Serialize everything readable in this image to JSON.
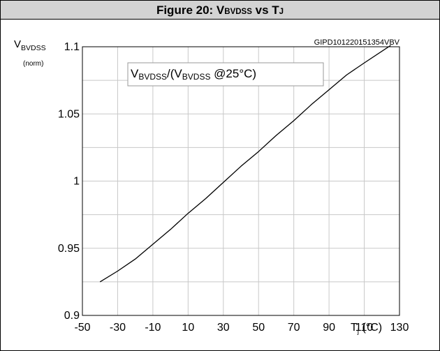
{
  "figure": {
    "title_prefix": "Figure 20: V",
    "title_v_sub": "BVDSS",
    "title_mid": " vs T",
    "title_t_sub": "J",
    "code": "GIPD101220151354VBV"
  },
  "chart_data": {
    "type": "line",
    "ylabel_main": "V",
    "ylabel_sub": "BVDSS",
    "yunit": "(norm)",
    "xlabel_main": "T",
    "xlabel_sub": "j",
    "xlabel_unit": " (°C)",
    "annotation": {
      "a1": "V",
      "s1": "BVDSS",
      "a2": "/(V",
      "s2": "BVDSS",
      "a3": " @25°C)"
    },
    "xlim": [
      -50,
      130
    ],
    "ylim": [
      0.9,
      1.1
    ],
    "x_ticks": [
      -50,
      -30,
      -10,
      10,
      30,
      50,
      70,
      90,
      110,
      130
    ],
    "x_tick_labels": [
      "-50",
      "-30",
      "-10",
      "10",
      "30",
      "50",
      "70",
      "90",
      "110",
      "130"
    ],
    "y_ticks": [
      0.9,
      0.95,
      1,
      1.05,
      1.1
    ],
    "y_tick_labels": [
      "0.9",
      "0.95",
      "1",
      "1.05",
      "1.1"
    ],
    "grid": true,
    "series": [
      {
        "x": [
          -40,
          -30,
          -20,
          -10,
          0,
          10,
          20,
          30,
          40,
          50,
          60,
          70,
          80,
          90,
          100,
          110,
          125
        ],
        "y": [
          0.925,
          0.933,
          0.942,
          0.953,
          0.964,
          0.976,
          0.987,
          0.999,
          1.011,
          1.022,
          1.034,
          1.045,
          1.057,
          1.068,
          1.079,
          1.088,
          1.101
        ]
      }
    ]
  }
}
